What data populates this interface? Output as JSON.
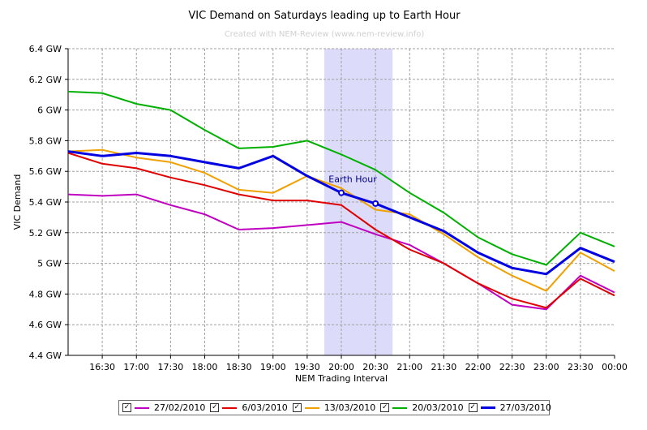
{
  "chart_data": {
    "type": "line",
    "title": "VIC Demand on Saturdays leading up to Earth Hour",
    "subtitle": "Created with NEM-Review (www.nem-review.info)",
    "xlabel": "NEM Trading Interval",
    "ylabel": "VIC Demand",
    "x": [
      "16:00",
      "16:30",
      "17:00",
      "17:30",
      "18:00",
      "18:30",
      "19:00",
      "19:30",
      "20:00",
      "20:30",
      "21:00",
      "21:30",
      "22:00",
      "22:30",
      "23:00",
      "23:30",
      "00:00"
    ],
    "x_tick_labels": [
      "16:30",
      "17:00",
      "17:30",
      "18:00",
      "18:30",
      "19:00",
      "19:30",
      "20:00",
      "20:30",
      "21:00",
      "21:30",
      "22:00",
      "22:30",
      "23:00",
      "23:30",
      "00:00"
    ],
    "ylim": [
      4.4,
      6.4
    ],
    "y_ticks": [
      4.4,
      4.6,
      4.8,
      5.0,
      5.2,
      5.4,
      5.6,
      5.8,
      6.0,
      6.2,
      6.4
    ],
    "y_tick_labels": [
      "4.4 GW",
      "4.6 GW",
      "4.8 GW",
      "5 GW",
      "5.2 GW",
      "5.4 GW",
      "5.6 GW",
      "5.8 GW",
      "6 GW",
      "6.2 GW",
      "6.4 GW"
    ],
    "grid": true,
    "legend_position": "bottom",
    "series": [
      {
        "name": "27/02/2010",
        "color": "#c000c0",
        "values": [
          5.45,
          5.44,
          5.45,
          5.38,
          5.32,
          5.22,
          5.23,
          5.25,
          5.27,
          5.19,
          5.12,
          5.0,
          4.87,
          4.73,
          4.7,
          4.92,
          4.81
        ]
      },
      {
        "name": "6/03/2010",
        "color": "#e00000",
        "values": [
          5.72,
          5.65,
          5.62,
          5.56,
          5.51,
          5.45,
          5.41,
          5.41,
          5.38,
          5.22,
          5.09,
          5.0,
          4.87,
          4.77,
          4.71,
          4.9,
          4.79
        ]
      },
      {
        "name": "13/03/2010",
        "color": "#f0a000",
        "values": [
          5.73,
          5.74,
          5.69,
          5.66,
          5.59,
          5.48,
          5.46,
          5.57,
          5.49,
          5.35,
          5.32,
          5.19,
          5.04,
          4.92,
          4.82,
          5.07,
          4.95
        ]
      },
      {
        "name": "20/03/2010",
        "color": "#00b000",
        "values": [
          6.12,
          6.11,
          6.04,
          6.0,
          5.87,
          5.75,
          5.76,
          5.8,
          5.71,
          5.61,
          5.46,
          5.33,
          5.17,
          5.06,
          4.99,
          5.2,
          5.11
        ]
      },
      {
        "name": "27/03/2010",
        "color": "#0000e0",
        "values": [
          5.73,
          5.7,
          5.72,
          5.7,
          5.66,
          5.62,
          5.7,
          5.57,
          5.46,
          5.39,
          5.3,
          5.21,
          5.07,
          4.97,
          4.93,
          5.1,
          5.01
        ]
      }
    ],
    "annotations": [
      {
        "text": "Earth Hour",
        "x_start": "19:45",
        "x_end": "20:45",
        "highlight_color": "#dcdcfa"
      }
    ],
    "highlighted_points": [
      {
        "series": "27/03/2010",
        "x": "20:00",
        "y": 5.46
      },
      {
        "series": "27/03/2010",
        "x": "20:30",
        "y": 5.39
      }
    ]
  },
  "legend": {
    "check_glyph": "✓"
  }
}
